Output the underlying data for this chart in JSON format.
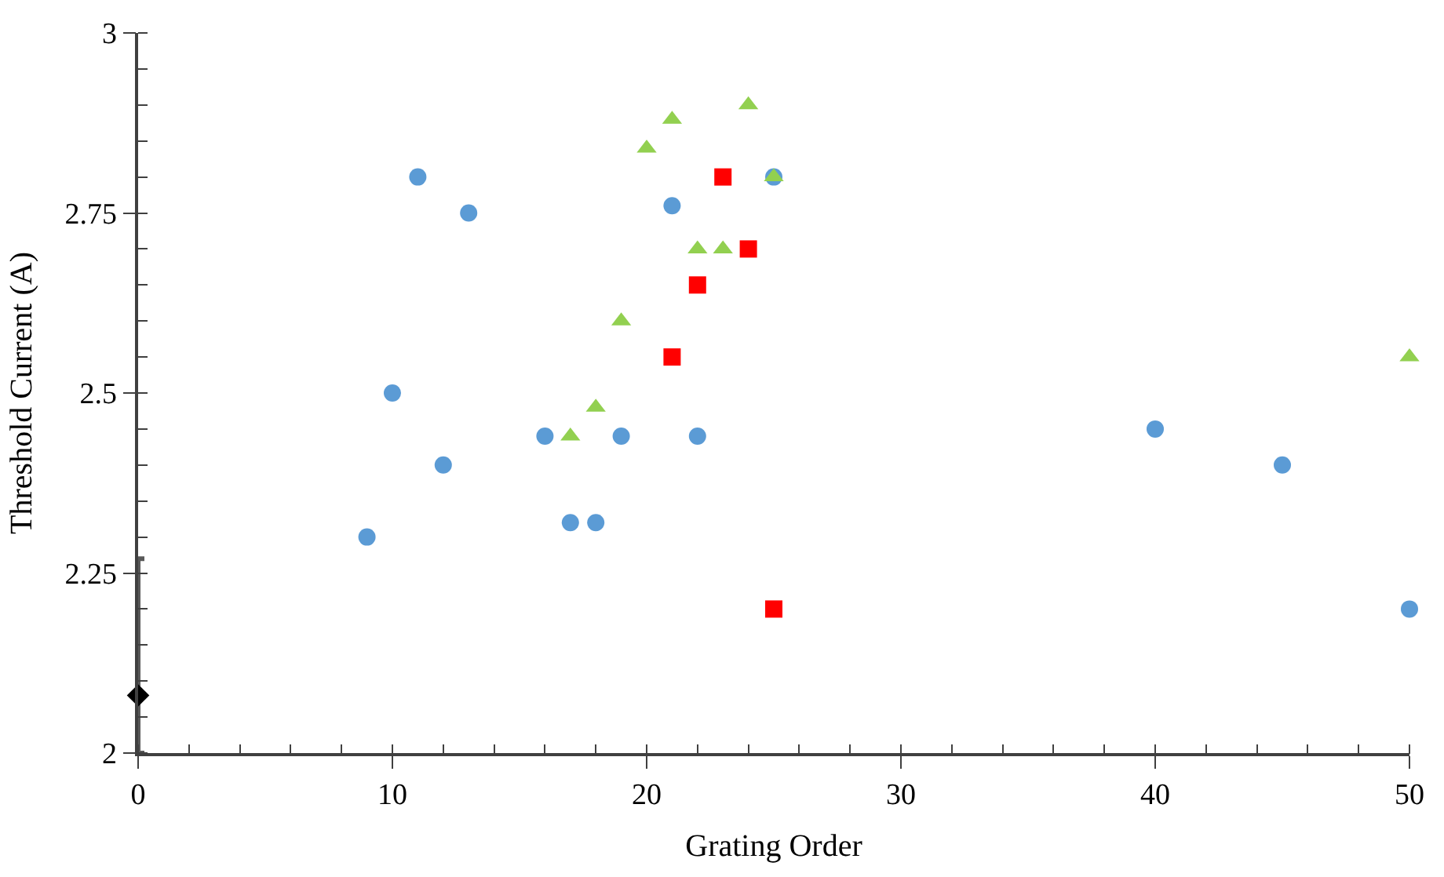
{
  "chart_data": {
    "type": "scatter",
    "xlabel": "Grating Order",
    "ylabel": "Threshold Current (A)",
    "xlim": [
      0,
      50
    ],
    "xticks": [
      0,
      10,
      20,
      30,
      40,
      50
    ],
    "ylim": [
      2,
      3
    ],
    "yticks": [
      2,
      2.25,
      2.5,
      2.75,
      3
    ],
    "legend": false,
    "series": [
      {
        "color": "#5b9bd5",
        "marker": "circle",
        "x": [
          9,
          10,
          11,
          12,
          13,
          16,
          17,
          18,
          19,
          21,
          22,
          25,
          40,
          45,
          50
        ],
        "values": [
          2.3,
          2.5,
          2.8,
          2.4,
          2.75,
          2.44,
          2.32,
          2.32,
          2.44,
          2.76,
          2.44,
          2.8,
          2.45,
          2.4,
          2.2
        ]
      },
      {
        "color": "#92d050",
        "marker": "triangle",
        "x": [
          17,
          18,
          19,
          20,
          21,
          22,
          23,
          24,
          25,
          50
        ],
        "values": [
          2.44,
          2.48,
          2.6,
          2.84,
          2.88,
          2.7,
          2.7,
          2.9,
          2.8,
          2.55
        ]
      },
      {
        "color": "#ff0000",
        "marker": "square",
        "x": [
          21,
          22,
          23,
          24,
          25
        ],
        "values": [
          2.55,
          2.65,
          2.8,
          2.7,
          2.2
        ]
      },
      {
        "color": "#000000",
        "marker": "diamond",
        "x": [
          0
        ],
        "values": [
          2.08
        ],
        "errors": [
          [
            2.0,
            2.27
          ]
        ]
      }
    ]
  }
}
